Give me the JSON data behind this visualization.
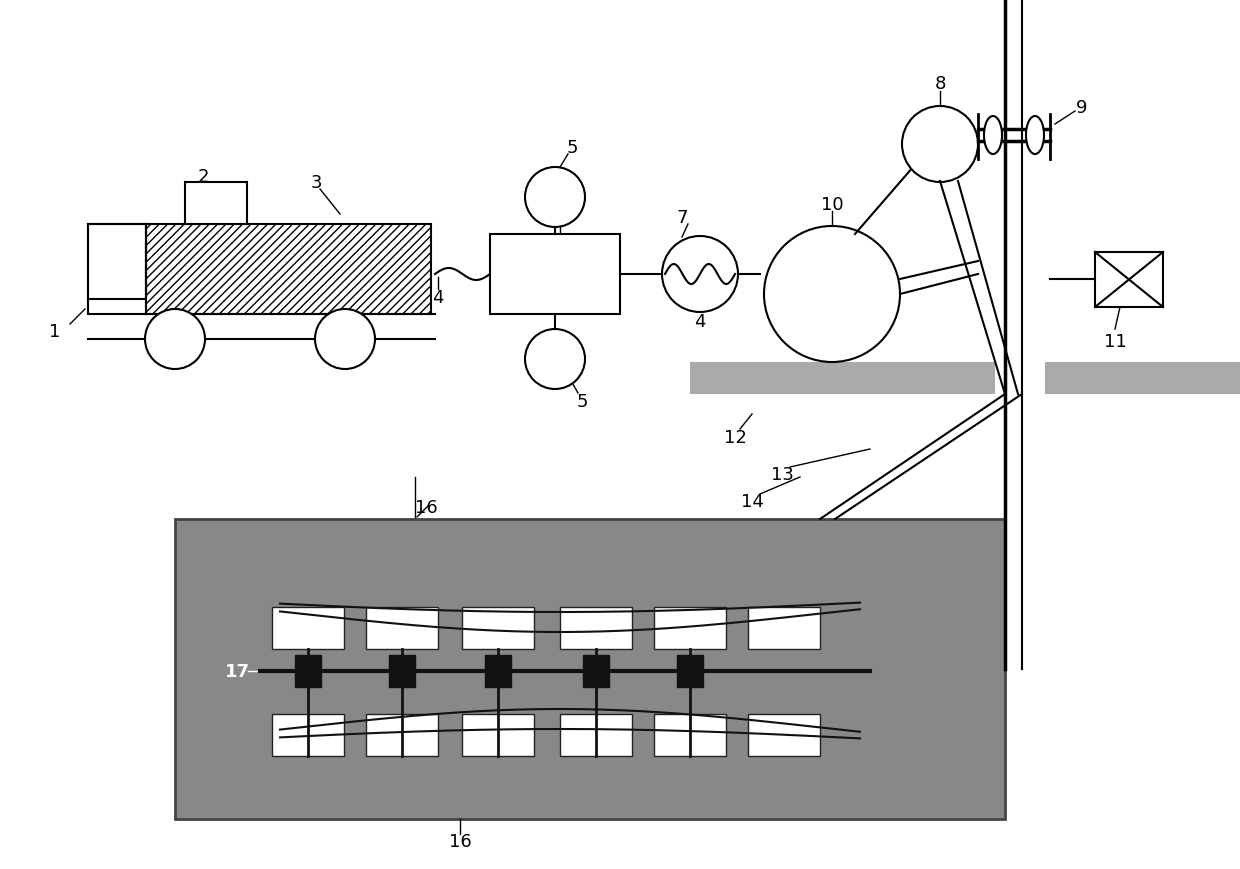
{
  "bg_color": "#ffffff",
  "line_color": "#000000",
  "hatch_color": "#000000",
  "gray_fill": "#aaaaaa",
  "dark_gray": "#888888",
  "label_fontsize": 13,
  "lw": 1.5
}
